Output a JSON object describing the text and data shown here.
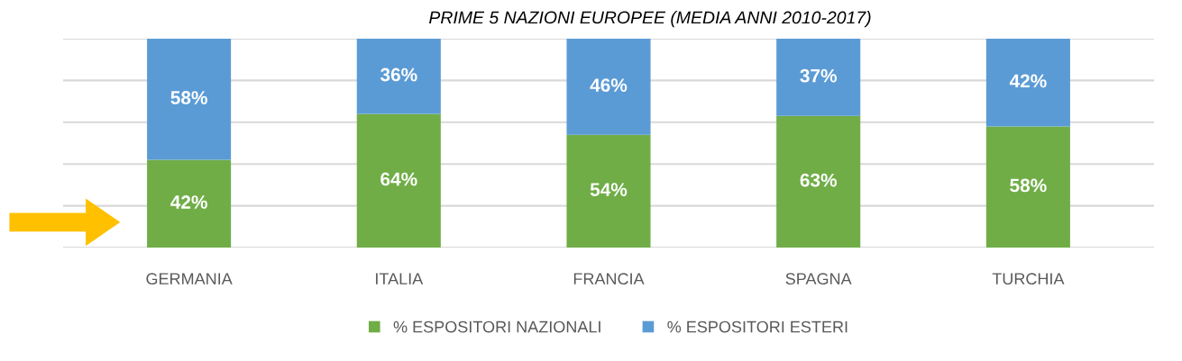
{
  "chart_data": {
    "type": "bar",
    "title": "PRIME 5 NAZIONI EUROPEE (MEDIA ANNI 2010-2017)",
    "stacked": true,
    "categories": [
      "GERMANIA",
      "ITALIA",
      "FRANCIA",
      "SPAGNA",
      "TURCHIA"
    ],
    "series": [
      {
        "name": "% ESPOSITORI NAZIONALI",
        "color": "#70ad47",
        "values": [
          42,
          64,
          54,
          63,
          58
        ],
        "value_labels": [
          "42%",
          "64%",
          "54%",
          "63%",
          "58%"
        ]
      },
      {
        "name": "% ESPOSITORI ESTERI",
        "color": "#5b9bd5",
        "values": [
          58,
          36,
          46,
          37,
          42
        ],
        "value_labels": [
          "58%",
          "36%",
          "46%",
          "37%",
          "42%"
        ]
      }
    ],
    "ylim": [
      0,
      100
    ],
    "yticks": [
      {
        "value": 0,
        "label": null
      },
      {
        "value": 20,
        "label": null
      },
      {
        "value": 40,
        "label": null
      },
      {
        "value": 60,
        "label": null
      },
      {
        "value": 80,
        "label": null
      },
      {
        "value": 100,
        "label": null
      }
    ],
    "tick_labels": "x",
    "grid": "y",
    "legend": "bottom"
  }
}
